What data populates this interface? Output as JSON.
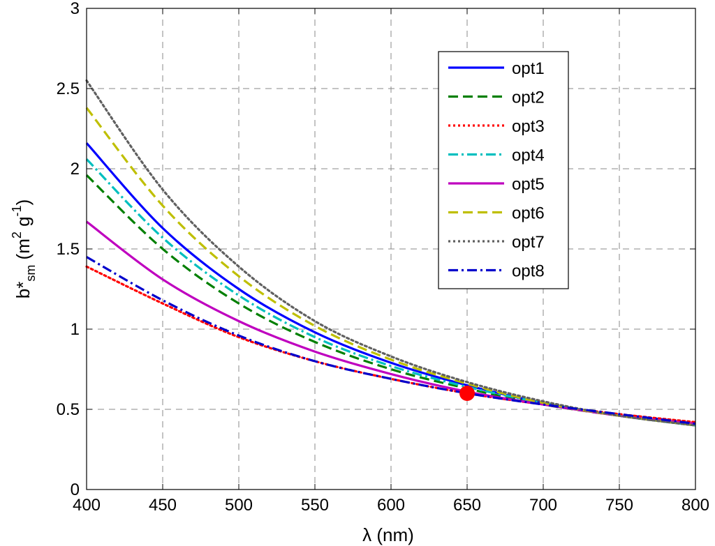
{
  "chart_data": {
    "type": "line",
    "xlabel": "λ (nm)",
    "ylabel": {
      "base": "b*",
      "sub": "sm",
      "unit_open": " (m",
      "unit_sup1": "2",
      "unit_mid": " g",
      "unit_sup2": "-1",
      "unit_close": ")"
    },
    "xlim": [
      400,
      800
    ],
    "ylim": [
      0,
      3
    ],
    "xticks": [
      400,
      450,
      500,
      550,
      600,
      650,
      700,
      750,
      800
    ],
    "yticks": [
      0,
      0.5,
      1,
      1.5,
      2,
      2.5,
      3
    ],
    "ytick_labels": [
      "0",
      "0.5",
      "1",
      "1.5",
      "2",
      "2.5",
      "3"
    ],
    "grid": true,
    "legend_position": "top-right",
    "x": [
      400,
      450,
      500,
      550,
      600,
      650,
      700,
      750,
      800
    ],
    "series": [
      {
        "name": "opt1",
        "color": "#0000ff",
        "style": "solid",
        "values": [
          2.16,
          1.63,
          1.25,
          0.98,
          0.79,
          0.65,
          0.54,
          0.46,
          0.4
        ]
      },
      {
        "name": "opt2",
        "color": "#007f00",
        "style": "dashed",
        "values": [
          1.96,
          1.5,
          1.16,
          0.92,
          0.75,
          0.63,
          0.53,
          0.46,
          0.4
        ]
      },
      {
        "name": "opt3",
        "color": "#ff0000",
        "style": "dotted",
        "values": [
          1.39,
          1.16,
          0.95,
          0.8,
          0.69,
          0.6,
          0.53,
          0.47,
          0.42
        ]
      },
      {
        "name": "opt4",
        "color": "#00bfbf",
        "style": "dashdot",
        "values": [
          2.06,
          1.57,
          1.21,
          0.95,
          0.77,
          0.64,
          0.54,
          0.46,
          0.4
        ]
      },
      {
        "name": "opt5",
        "color": "#bf00bf",
        "style": "solid",
        "values": [
          1.67,
          1.31,
          1.05,
          0.86,
          0.72,
          0.61,
          0.53,
          0.46,
          0.41
        ]
      },
      {
        "name": "opt6",
        "color": "#bfbf00",
        "style": "dashed",
        "values": [
          2.38,
          1.77,
          1.33,
          1.02,
          0.81,
          0.66,
          0.54,
          0.46,
          0.4
        ]
      },
      {
        "name": "opt7",
        "color": "#606060",
        "style": "dotted",
        "values": [
          2.55,
          1.87,
          1.39,
          1.05,
          0.83,
          0.67,
          0.55,
          0.46,
          0.4
        ]
      },
      {
        "name": "opt8",
        "color": "#0000cc",
        "style": "dashdot",
        "values": [
          1.45,
          1.18,
          0.96,
          0.8,
          0.69,
          0.6,
          0.53,
          0.47,
          0.41
        ]
      }
    ],
    "annotations": [
      {
        "type": "marker",
        "shape": "circle",
        "color": "#ff0000",
        "x": 650,
        "y": 0.6
      }
    ]
  }
}
